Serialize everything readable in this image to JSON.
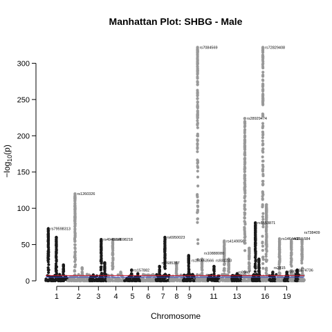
{
  "chart_data": {
    "type": "scatter",
    "title": "Manhattan Plot: SHBG - Male",
    "xlabel": "Chromosome",
    "ylabel": "−log",
    "ylabel_sub": "10",
    "ylabel_tail": "(p)",
    "ylim": [
      0,
      330
    ],
    "yticks": [
      0,
      50,
      100,
      150,
      200,
      250,
      300
    ],
    "ytick_labels": [
      "0",
      "50",
      "100",
      "150",
      "200",
      "250",
      "300"
    ],
    "xtick_labels": [
      "1",
      "2",
      "3",
      "4",
      "5",
      "6",
      "7",
      "8",
      "9",
      "11",
      "13",
      "16",
      "19"
    ],
    "colors": {
      "odd": "#1a1a1a",
      "even": "#999999",
      "genomewide_line": "#c8102e",
      "suggestive_line": "#3b4fd8"
    },
    "thresholds": {
      "genomewide": 7.3,
      "suggestive": 5
    },
    "chromosomes": [
      {
        "chr": 1,
        "xmin": 0,
        "xmax": 248,
        "peaks": [
          [
            30,
            72
          ],
          [
            120,
            60
          ],
          [
            200,
            22
          ]
        ]
      },
      {
        "chr": 2,
        "xmin": 250,
        "xmax": 492,
        "peaks": [
          [
            80,
            120
          ],
          [
            160,
            18
          ]
        ]
      },
      {
        "chr": 3,
        "xmin": 494,
        "xmax": 692,
        "peaks": [
          [
            130,
            57
          ],
          [
            170,
            25
          ]
        ]
      },
      {
        "chr": 4,
        "xmin": 694,
        "xmax": 884,
        "peaks": [
          [
            60,
            57
          ],
          [
            150,
            12
          ]
        ]
      },
      {
        "chr": 5,
        "xmin": 886,
        "xmax": 1066,
        "peaks": [
          [
            80,
            15
          ],
          [
            150,
            10
          ]
        ]
      },
      {
        "chr": 6,
        "xmin": 1068,
        "xmax": 1238,
        "peaks": [
          [
            90,
            8
          ]
        ]
      },
      {
        "chr": 7,
        "xmin": 1240,
        "xmax": 1398,
        "peaks": [
          [
            100,
            60
          ],
          [
            40,
            20
          ]
        ]
      },
      {
        "chr": 8,
        "xmin": 1400,
        "xmax": 1545,
        "peaks": [
          [
            70,
            25
          ]
        ]
      },
      {
        "chr": 9,
        "xmin": 1547,
        "xmax": 1685,
        "peaks": [
          [
            60,
            35
          ]
        ]
      },
      {
        "chr": 10,
        "xmin": 1687,
        "xmax": 1820,
        "peaks": [
          [
            20,
            322
          ],
          [
            70,
            30
          ]
        ]
      },
      {
        "chr": 11,
        "xmin": 1822,
        "xmax": 1955,
        "peaks": [
          [
            70,
            20
          ]
        ]
      },
      {
        "chr": 12,
        "xmin": 1957,
        "xmax": 2090,
        "peaks": [
          [
            50,
            55
          ],
          [
            100,
            30
          ]
        ]
      },
      {
        "chr": 13,
        "xmin": 2092,
        "xmax": 2206,
        "peaks": [
          [
            60,
            10
          ]
        ]
      },
      {
        "chr": 14,
        "xmin": 2208,
        "xmax": 2315,
        "peaks": [
          [
            30,
            224
          ],
          [
            80,
            45
          ]
        ]
      },
      {
        "chr": 15,
        "xmin": 2317,
        "xmax": 2419,
        "peaks": [
          [
            40,
            80
          ],
          [
            80,
            30
          ]
        ]
      },
      {
        "chr": 16,
        "xmin": 2421,
        "xmax": 2511,
        "peaks": [
          [
            20,
            322
          ],
          [
            60,
            105
          ]
        ]
      },
      {
        "chr": 17,
        "xmin": 2513,
        "xmax": 2596,
        "peaks": [
          [
            40,
            12
          ]
        ]
      },
      {
        "chr": 18,
        "xmin": 2598,
        "xmax": 2678,
        "peaks": [
          [
            30,
            58
          ]
        ]
      },
      {
        "chr": 19,
        "xmin": 2680,
        "xmax": 2739,
        "peaks": [
          [
            30,
            12
          ]
        ]
      },
      {
        "chr": 20,
        "xmin": 2741,
        "xmax": 2805,
        "peaks": [
          [
            20,
            55
          ]
        ]
      },
      {
        "chr": 21,
        "xmin": 2807,
        "xmax": 2854,
        "peaks": [
          [
            20,
            15
          ]
        ]
      },
      {
        "chr": 22,
        "xmin": 2856,
        "xmax": 2907,
        "peaks": [
          [
            25,
            58
          ]
        ]
      }
    ],
    "annotations": [
      {
        "text": "rs79598313",
        "x": 30,
        "y": 72
      },
      {
        "text": "rs1260326",
        "x": 330,
        "y": 120
      },
      {
        "text": "rs4948218",
        "x": 625,
        "y": 57
      },
      {
        "text": "rs4698218",
        "x": 754,
        "y": 57
      },
      {
        "text": "rs157882",
        "x": 966,
        "y": 15
      },
      {
        "text": "rs3685357",
        "x": 1280,
        "y": 25
      },
      {
        "text": "rs6950023",
        "x": 1340,
        "y": 60
      },
      {
        "text": "rs150653566",
        "x": 1617,
        "y": 28
      },
      {
        "text": "rs7084569",
        "x": 1707,
        "y": 322
      },
      {
        "text": "rs10888080",
        "x": 1757,
        "y": 38
      },
      {
        "text": "rs4149056",
        "x": 2007,
        "y": 55
      },
      {
        "text": "rs931233",
        "x": 1890,
        "y": 28
      },
      {
        "text": "rs28929474",
        "x": 2238,
        "y": 224
      },
      {
        "text": "rs8948",
        "x": 2140,
        "y": 12
      },
      {
        "text": "rs72829408",
        "x": 2441,
        "y": 322
      },
      {
        "text": "rs1553871",
        "x": 2357,
        "y": 80
      },
      {
        "text": "rs2815",
        "x": 2541,
        "y": 18
      },
      {
        "text": "rs1464466",
        "x": 2628,
        "y": 58
      },
      {
        "text": "rs6012",
        "x": 2700,
        "y": 13
      },
      {
        "text": "rs1574736",
        "x": 2781,
        "y": 15
      },
      {
        "text": "rs738409",
        "x": 2881,
        "y": 67
      },
      {
        "text": "rs16...584",
        "x": 2760,
        "y": 58
      }
    ]
  }
}
